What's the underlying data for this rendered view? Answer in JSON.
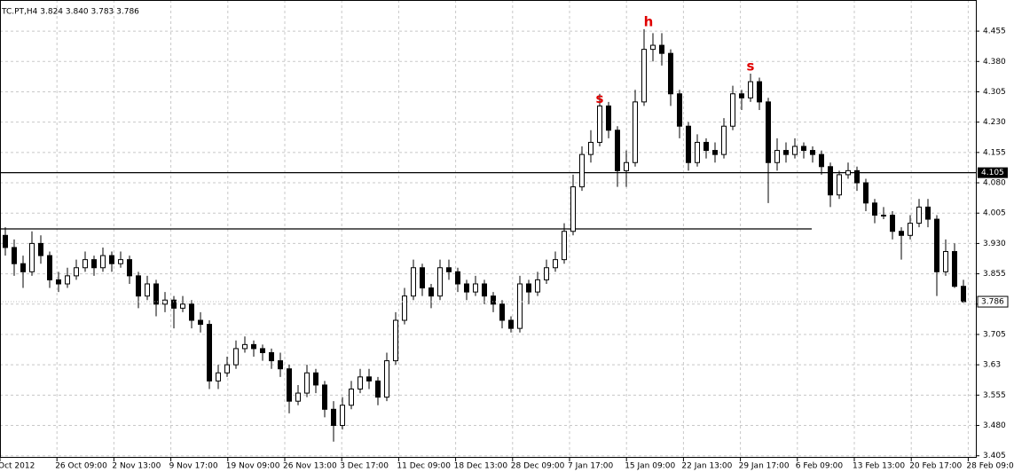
{
  "chart_data": {
    "type": "candlestick",
    "title": "TC.PT,H4  3.824 3.840 3.783 3.786",
    "annotations": [
      "s",
      "h",
      "s"
    ],
    "annotation_color": "#e00000",
    "x_labels": [
      "Oct 2012",
      "26 Oct 09:00",
      "2 Nov 13:00",
      "9 Nov 17:00",
      "19 Nov 09:00",
      "26 Nov 13:00",
      "3 Dec 17:00",
      "11 Dec 09:00",
      "18 Dec 13:00",
      "28 Dec 09:00",
      "7 Jan 17:00",
      "15 Jan 09:00",
      "22 Jan 13:00",
      "29 Jan 17:00",
      "6 Feb 09:00",
      "13 Feb 13:00",
      "20 Feb 17:00",
      "28 Feb 09:00"
    ],
    "ylim": [
      3.4,
      4.532
    ],
    "yticks": [
      4.455,
      {
        "value": 4.38,
        "label": "4.380"
      },
      4.305,
      {
        "value": 4.23,
        "label": "4.230"
      },
      4.155,
      {
        "value": 4.08,
        "label": "4.080"
      },
      4.005,
      {
        "value": 3.93,
        "label": "3.930"
      },
      3.855,
      {
        "value": 3.78,
        "label": "3.780"
      },
      3.705,
      3.63,
      3.555,
      {
        "value": 3.48,
        "label": "3.480"
      },
      3.405
    ],
    "grid": true,
    "levels": [
      4.105,
      3.966
    ],
    "current_price": 3.786,
    "ohlc": [
      [
        3.95,
        3.97,
        3.9,
        3.92
      ],
      [
        3.92,
        3.94,
        3.85,
        3.88
      ],
      [
        3.88,
        3.9,
        3.82,
        3.86
      ],
      [
        3.86,
        3.96,
        3.85,
        3.93
      ],
      [
        3.93,
        3.95,
        3.88,
        3.9
      ],
      [
        3.9,
        3.91,
        3.82,
        3.84
      ],
      [
        3.84,
        3.86,
        3.81,
        3.83
      ],
      [
        3.83,
        3.87,
        3.82,
        3.85
      ],
      [
        3.85,
        3.89,
        3.84,
        3.87
      ],
      [
        3.87,
        3.91,
        3.86,
        3.89
      ],
      [
        3.89,
        3.9,
        3.85,
        3.87
      ],
      [
        3.87,
        3.92,
        3.86,
        3.9
      ],
      [
        3.9,
        3.91,
        3.86,
        3.88
      ],
      [
        3.88,
        3.91,
        3.87,
        3.89
      ],
      [
        3.89,
        3.9,
        3.83,
        3.85
      ],
      [
        3.85,
        3.86,
        3.77,
        3.8
      ],
      [
        3.8,
        3.85,
        3.79,
        3.83
      ],
      [
        3.83,
        3.84,
        3.75,
        3.78
      ],
      [
        3.78,
        3.81,
        3.76,
        3.79
      ],
      [
        3.79,
        3.8,
        3.72,
        3.77
      ],
      [
        3.77,
        3.8,
        3.76,
        3.78
      ],
      [
        3.78,
        3.79,
        3.72,
        3.74
      ],
      [
        3.74,
        3.76,
        3.71,
        3.73
      ],
      [
        3.73,
        3.74,
        3.57,
        3.59
      ],
      [
        3.59,
        3.63,
        3.57,
        3.61
      ],
      [
        3.61,
        3.65,
        3.6,
        3.63
      ],
      [
        3.63,
        3.69,
        3.62,
        3.67
      ],
      [
        3.67,
        3.7,
        3.66,
        3.68
      ],
      [
        3.68,
        3.69,
        3.65,
        3.67
      ],
      [
        3.67,
        3.68,
        3.64,
        3.66
      ],
      [
        3.66,
        3.67,
        3.62,
        3.64
      ],
      [
        3.64,
        3.66,
        3.6,
        3.62
      ],
      [
        3.62,
        3.63,
        3.51,
        3.54
      ],
      [
        3.54,
        3.58,
        3.53,
        3.56
      ],
      [
        3.56,
        3.63,
        3.55,
        3.61
      ],
      [
        3.61,
        3.62,
        3.56,
        3.58
      ],
      [
        3.58,
        3.59,
        3.5,
        3.52
      ],
      [
        3.52,
        3.54,
        3.44,
        3.48
      ],
      [
        3.48,
        3.55,
        3.47,
        3.53
      ],
      [
        3.53,
        3.59,
        3.52,
        3.57
      ],
      [
        3.57,
        3.62,
        3.56,
        3.6
      ],
      [
        3.6,
        3.62,
        3.57,
        3.59
      ],
      [
        3.59,
        3.6,
        3.53,
        3.55
      ],
      [
        3.55,
        3.66,
        3.54,
        3.64
      ],
      [
        3.64,
        3.76,
        3.63,
        3.74
      ],
      [
        3.74,
        3.82,
        3.73,
        3.8
      ],
      [
        3.8,
        3.89,
        3.79,
        3.87
      ],
      [
        3.87,
        3.88,
        3.8,
        3.82
      ],
      [
        3.82,
        3.83,
        3.77,
        3.8
      ],
      [
        3.8,
        3.89,
        3.79,
        3.87
      ],
      [
        3.87,
        3.89,
        3.84,
        3.86
      ],
      [
        3.86,
        3.87,
        3.81,
        3.83
      ],
      [
        3.83,
        3.84,
        3.79,
        3.81
      ],
      [
        3.81,
        3.85,
        3.8,
        3.83
      ],
      [
        3.83,
        3.84,
        3.78,
        3.8
      ],
      [
        3.8,
        3.81,
        3.76,
        3.78
      ],
      [
        3.78,
        3.79,
        3.72,
        3.74
      ],
      [
        3.74,
        3.75,
        3.71,
        3.72
      ],
      [
        3.72,
        3.85,
        3.71,
        3.83
      ],
      [
        3.83,
        3.84,
        3.78,
        3.81
      ],
      [
        3.81,
        3.86,
        3.8,
        3.84
      ],
      [
        3.84,
        3.89,
        3.83,
        3.87
      ],
      [
        3.87,
        3.91,
        3.86,
        3.89
      ],
      [
        3.89,
        3.98,
        3.88,
        3.96
      ],
      [
        3.96,
        4.1,
        3.95,
        4.07
      ],
      [
        4.07,
        4.17,
        4.06,
        4.15
      ],
      [
        4.15,
        4.21,
        4.13,
        4.18
      ],
      [
        4.18,
        4.3,
        4.17,
        4.27
      ],
      [
        4.27,
        4.28,
        4.19,
        4.21
      ],
      [
        4.21,
        4.22,
        4.07,
        4.11
      ],
      [
        4.11,
        4.16,
        4.07,
        4.13
      ],
      [
        4.13,
        4.31,
        4.12,
        4.28
      ],
      [
        4.28,
        4.46,
        4.27,
        4.41
      ],
      [
        4.41,
        4.45,
        4.38,
        4.42
      ],
      [
        4.42,
        4.45,
        4.37,
        4.4
      ],
      [
        4.4,
        4.41,
        4.27,
        4.3
      ],
      [
        4.3,
        4.31,
        4.19,
        4.22
      ],
      [
        4.22,
        4.23,
        4.11,
        4.13
      ],
      [
        4.13,
        4.2,
        4.12,
        4.18
      ],
      [
        4.18,
        4.19,
        4.14,
        4.16
      ],
      [
        4.16,
        4.18,
        4.13,
        4.15
      ],
      [
        4.15,
        4.24,
        4.14,
        4.22
      ],
      [
        4.22,
        4.32,
        4.21,
        4.3
      ],
      [
        4.3,
        4.31,
        4.26,
        4.29
      ],
      [
        4.29,
        4.35,
        4.28,
        4.33
      ],
      [
        4.33,
        4.34,
        4.26,
        4.28
      ],
      [
        4.28,
        4.29,
        4.03,
        4.13
      ],
      [
        4.13,
        4.19,
        4.11,
        4.16
      ],
      [
        4.16,
        4.18,
        4.13,
        4.15
      ],
      [
        4.15,
        4.19,
        4.14,
        4.17
      ],
      [
        4.17,
        4.18,
        4.14,
        4.16
      ],
      [
        4.16,
        4.17,
        4.13,
        4.15
      ],
      [
        4.15,
        4.16,
        4.1,
        4.12
      ],
      [
        4.12,
        4.13,
        4.02,
        4.05
      ],
      [
        4.05,
        4.11,
        4.04,
        4.1
      ],
      [
        4.1,
        4.13,
        4.09,
        4.11
      ],
      [
        4.11,
        4.12,
        4.06,
        4.08
      ],
      [
        4.08,
        4.09,
        4.01,
        4.03
      ],
      [
        4.03,
        4.04,
        3.98,
        4.0
      ],
      [
        4.0,
        4.02,
        3.99,
        4.0
      ],
      [
        4.0,
        4.01,
        3.94,
        3.96
      ],
      [
        3.96,
        3.97,
        3.89,
        3.95
      ],
      [
        3.95,
        4.0,
        3.94,
        3.98
      ],
      [
        3.98,
        4.04,
        3.97,
        4.02
      ],
      [
        4.02,
        4.04,
        3.97,
        3.99
      ],
      [
        3.99,
        4.0,
        3.8,
        3.86
      ],
      [
        3.86,
        3.94,
        3.85,
        3.91
      ],
      [
        3.91,
        3.93,
        3.82,
        3.824
      ],
      [
        3.824,
        3.84,
        3.783,
        3.786
      ]
    ]
  }
}
